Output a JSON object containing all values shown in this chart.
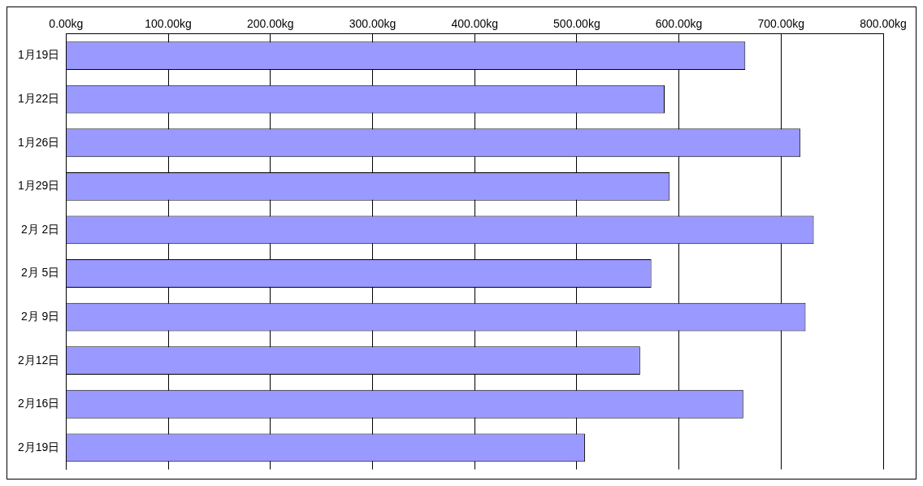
{
  "chart_data": {
    "type": "bar",
    "orientation": "horizontal",
    "categories": [
      "1月19日",
      "1月22日",
      "1月26日",
      "1月29日",
      "2月 2日",
      "2月 5日",
      "2月 9日",
      "2月12日",
      "2月16日",
      "2月19日"
    ],
    "values": [
      665,
      586,
      719,
      591,
      732,
      573,
      724,
      562,
      663,
      508
    ],
    "color": "#9999ff",
    "xlim": [
      0,
      800
    ],
    "xticks": [
      {
        "value": 0,
        "label": "0.00kg"
      },
      {
        "value": 100,
        "label": "100.00kg"
      },
      {
        "value": 200,
        "label": "200.00kg"
      },
      {
        "value": 300,
        "label": "300.00kg"
      },
      {
        "value": 400,
        "label": "400.00kg"
      },
      {
        "value": 500,
        "label": "500.00kg"
      },
      {
        "value": 600,
        "label": "600.00kg"
      },
      {
        "value": 700,
        "label": "700.00kg"
      },
      {
        "value": 800,
        "label": "800.00kg"
      }
    ],
    "grid": "x",
    "legend": false
  }
}
